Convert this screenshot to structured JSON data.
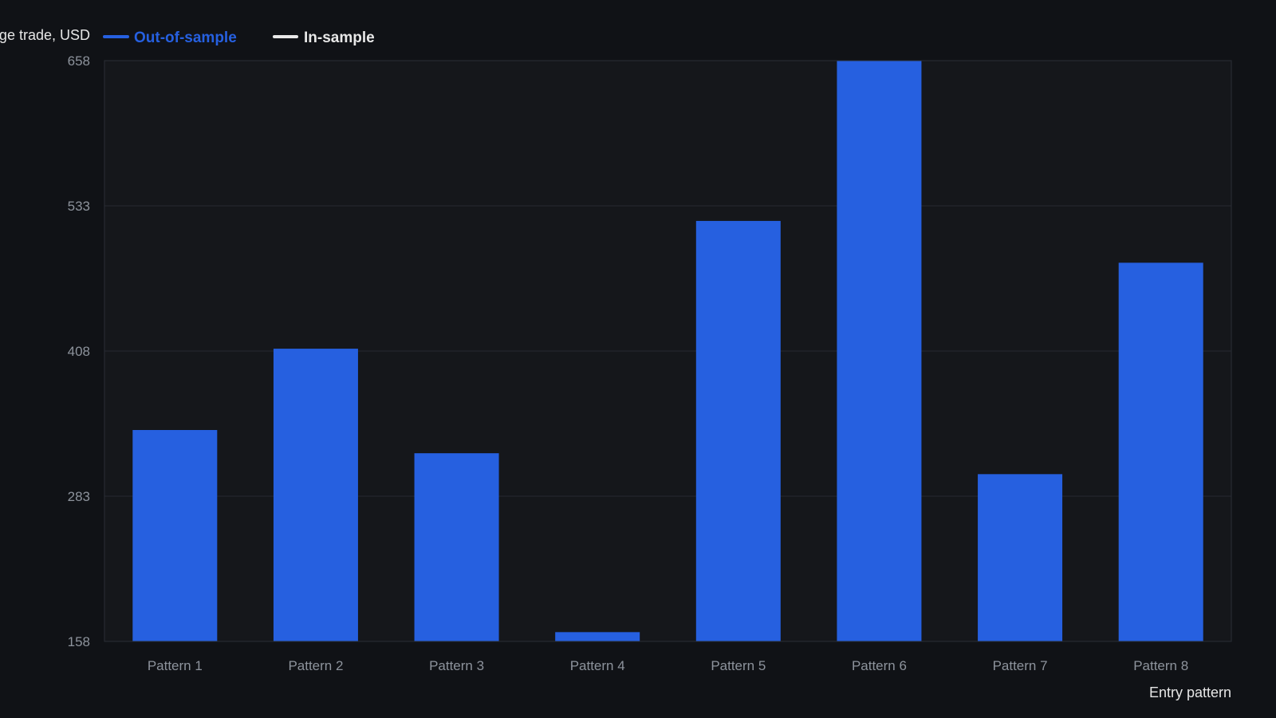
{
  "chart_data": {
    "type": "bar",
    "ylabel": "Average trade, USD",
    "xlabel": "Entry pattern",
    "legend": [
      {
        "name": "Out-of-sample",
        "color": "#2660e0"
      },
      {
        "name": "In-sample",
        "color": "#e8e8e8"
      }
    ],
    "legend_position": "top-left",
    "categories": [
      "Pattern 1",
      "Pattern 2",
      "Pattern 3",
      "Pattern 4",
      "Pattern 5",
      "Pattern 6",
      "Pattern 7",
      "Pattern 8"
    ],
    "series": [
      {
        "name": "Out-of-sample",
        "values": [
          340,
          410,
          320,
          166,
          520,
          658,
          302,
          484
        ]
      }
    ],
    "ylim": [
      158,
      658
    ],
    "yticks": [
      "158",
      "283",
      "408",
      "533",
      "658"
    ],
    "ytick_values": [
      158,
      283,
      408,
      533,
      658
    ],
    "grid": true
  },
  "colors": {
    "background": "#101216",
    "plot_background": "#15171b",
    "bar": "#2660e0",
    "grid": "#262a31",
    "frame": "#2a2e35",
    "tick_text": "#8d939c",
    "label_text": "#e6e6e6"
  }
}
